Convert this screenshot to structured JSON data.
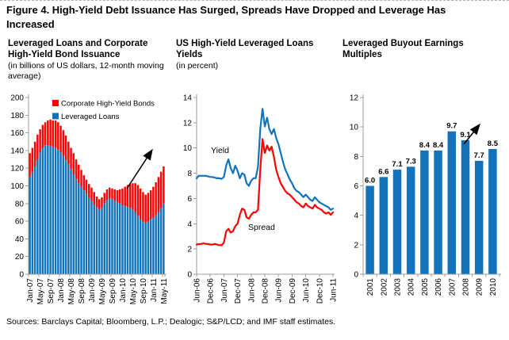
{
  "figure": {
    "title": "Figure 4. High-Yield Debt Issuance Has Surged, Spreads Have Dropped and Leverage Has Increased",
    "sources": "Sources: Barclays Capital; Bloomberg, L.P.; Dealogic; S&P/LCD; and IMF staff estimates."
  },
  "colors": {
    "blue": "#1273BB",
    "red": "#FE0000",
    "axis": "#9c9c9c",
    "text": "#000000",
    "arrow": "#000000"
  },
  "chart_data": [
    {
      "id": "issuance",
      "type": "bar",
      "stacked": true,
      "title": "Leveraged Loans and Corporate High-Yield Bond Issuance",
      "subtitle": "(in billions of US dollars, 12-month moving average)",
      "x_frequency": "monthly",
      "x_start": "Jan-07",
      "x_end": "May-11",
      "x_tick_labels": [
        "Jan-07",
        "May-07",
        "Sep-07",
        "Jan-08",
        "May-08",
        "Sep-08",
        "Jan-09",
        "May-09",
        "Sep-09",
        "Jan-10",
        "May-10",
        "Sep-10",
        "Jan-11",
        "May-11"
      ],
      "x_tick_every_n_months": 4,
      "ylim": [
        0,
        200
      ],
      "y_tick_step": 20,
      "legend": [
        "Corporate High-Yield Bonds",
        "Leveraged Loans"
      ],
      "legend_colors": [
        "red",
        "blue"
      ],
      "annotation_arrow": true,
      "series": [
        {
          "name": "Leveraged Loans",
          "color_key": "blue",
          "values": [
            110,
            116,
            122,
            130,
            138,
            143,
            146,
            146,
            145,
            144,
            143,
            141,
            138,
            134,
            129,
            124,
            119,
            113,
            108,
            103,
            99,
            95,
            91,
            87,
            83,
            79,
            76,
            73,
            75,
            80,
            84,
            86,
            85,
            83,
            81,
            80,
            78,
            77,
            76,
            75,
            73,
            70,
            66,
            62,
            59,
            58,
            60,
            62,
            64,
            67,
            70,
            75,
            80
          ]
        },
        {
          "name": "Corporate High-Yield Bonds",
          "color_key": "red",
          "values": [
            27,
            27,
            28,
            28,
            26,
            26,
            26,
            28,
            30,
            30,
            31,
            31,
            30,
            29,
            28,
            26,
            24,
            24,
            22,
            21,
            19,
            17,
            16,
            15,
            15,
            14,
            12,
            12,
            12,
            12,
            12,
            12,
            12,
            13,
            14,
            16,
            19,
            22,
            25,
            27,
            30,
            33,
            35,
            35,
            34,
            32,
            32,
            33,
            35,
            37,
            40,
            41,
            42
          ]
        }
      ]
    },
    {
      "id": "yields",
      "type": "line",
      "title": "US High-Yield Leveraged Loans Yields",
      "subtitle": "(in percent)",
      "x_frequency": "monthly",
      "x_start": "Jun-06",
      "x_end": "Jun-11",
      "x_tick_labels": [
        "Jun-06",
        "Dec-06",
        "Jun-07",
        "Dec-07",
        "Jun-08",
        "Dec-08",
        "Jun-09",
        "Dec-09",
        "Jun-10",
        "Dec-10",
        "Jun-11"
      ],
      "x_tick_every_n_months": 6,
      "ylim": [
        0,
        14
      ],
      "y_tick_step": 2,
      "series": [
        {
          "name": "Yield",
          "color_key": "blue",
          "values": [
            7.6,
            7.8,
            7.8,
            7.8,
            7.8,
            7.75,
            7.7,
            7.7,
            7.65,
            7.6,
            7.6,
            7.55,
            7.7,
            8.6,
            9.1,
            8.4,
            8.0,
            8.6,
            8.2,
            7.6,
            8.0,
            7.9,
            7.2,
            7.0,
            7.4,
            7.6,
            7.6,
            8.5,
            11.5,
            13.1,
            11.7,
            12.4,
            11.5,
            11.1,
            11.5,
            10.8,
            10.3,
            9.6,
            8.9,
            8.3,
            7.9,
            7.5,
            7.2,
            6.8,
            6.6,
            6.5,
            6.3,
            6.1,
            6.3,
            6.1,
            5.9,
            5.8,
            6.1,
            5.9,
            5.7,
            5.6,
            5.5,
            5.4,
            5.3,
            5.1,
            5.2
          ]
        },
        {
          "name": "Spread",
          "color_key": "red",
          "values": [
            2.35,
            2.4,
            2.4,
            2.45,
            2.4,
            2.4,
            2.35,
            2.35,
            2.4,
            2.35,
            2.3,
            2.3,
            2.5,
            3.4,
            3.6,
            3.3,
            3.4,
            3.8,
            4.0,
            4.7,
            5.2,
            5.1,
            4.5,
            4.4,
            4.7,
            4.9,
            4.9,
            5.1,
            8.3,
            10.7,
            9.6,
            10.2,
            9.8,
            10.1,
            9.3,
            8.3,
            7.7,
            7.2,
            6.9,
            6.6,
            6.4,
            6.3,
            6.1,
            5.9,
            5.7,
            5.6,
            5.4,
            5.3,
            5.6,
            5.4,
            5.3,
            5.2,
            5.5,
            5.3,
            5.2,
            5.1,
            4.9,
            4.8,
            4.9,
            4.7,
            4.9
          ]
        }
      ],
      "series_labels": [
        {
          "text": "Yield",
          "color_key": "text"
        },
        {
          "text": "Spread",
          "color_key": "text"
        }
      ]
    },
    {
      "id": "lbo-multiples",
      "type": "bar",
      "stacked": false,
      "title": "Leveraged Buyout Earnings Multiples",
      "subtitle": "",
      "categories": [
        "2001",
        "2002",
        "2003",
        "2004",
        "2005",
        "2006",
        "2007",
        "2008",
        "2009",
        "2010"
      ],
      "values": [
        6.0,
        6.6,
        7.1,
        7.3,
        8.4,
        8.4,
        9.7,
        9.1,
        7.7,
        8.5
      ],
      "value_labels": [
        "6.0",
        "6.6",
        "7.1",
        "7.3",
        "8.4",
        "8.4",
        "9.7",
        "9.1",
        "7.7",
        "8.5"
      ],
      "ylim": [
        0,
        12
      ],
      "y_tick_step": 2,
      "annotation_arrow": true
    }
  ]
}
